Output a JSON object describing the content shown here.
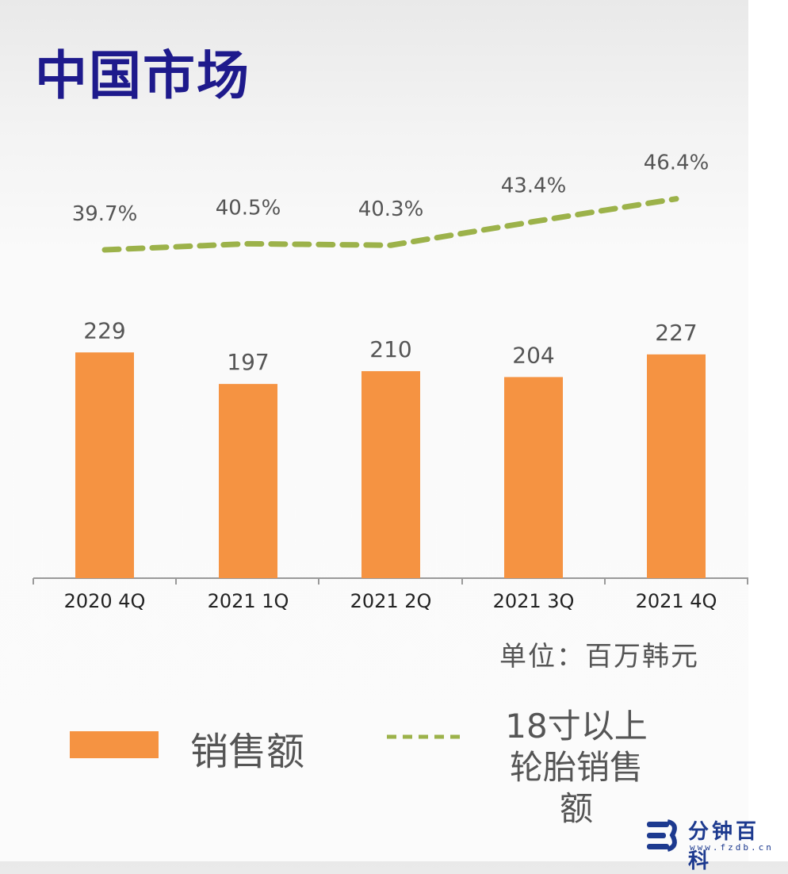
{
  "title": "中国市场",
  "unit_note": "单位：百万韩元",
  "legend": {
    "bar_label": "销售额",
    "line_label_lines": [
      "18寸以上",
      "轮胎销售",
      "额"
    ]
  },
  "watermark": {
    "name": "分钟百科",
    "url": "www.fzdb.cn"
  },
  "chart_data": {
    "type": "bar",
    "categories": [
      "2020 4Q",
      "2021 1Q",
      "2021 2Q",
      "2021 3Q",
      "2021 4Q"
    ],
    "series": [
      {
        "name": "销售额",
        "kind": "bar",
        "values": [
          229,
          197,
          210,
          204,
          227
        ],
        "labels": [
          "229",
          "197",
          "210",
          "204",
          "227"
        ],
        "color": "#f59342"
      },
      {
        "name": "18寸以上轮胎销售额",
        "kind": "line",
        "style": "dashed",
        "values": [
          39.7,
          40.5,
          40.3,
          43.4,
          46.4
        ],
        "labels": [
          "39.7%",
          "40.5%",
          "40.3%",
          "43.4%",
          "46.4%"
        ],
        "color": "#9cb24a"
      }
    ]
  },
  "colors": {
    "title": "#1e1a8c",
    "bar": "#f59342",
    "line": "#9cb24a",
    "text": "#555555"
  }
}
